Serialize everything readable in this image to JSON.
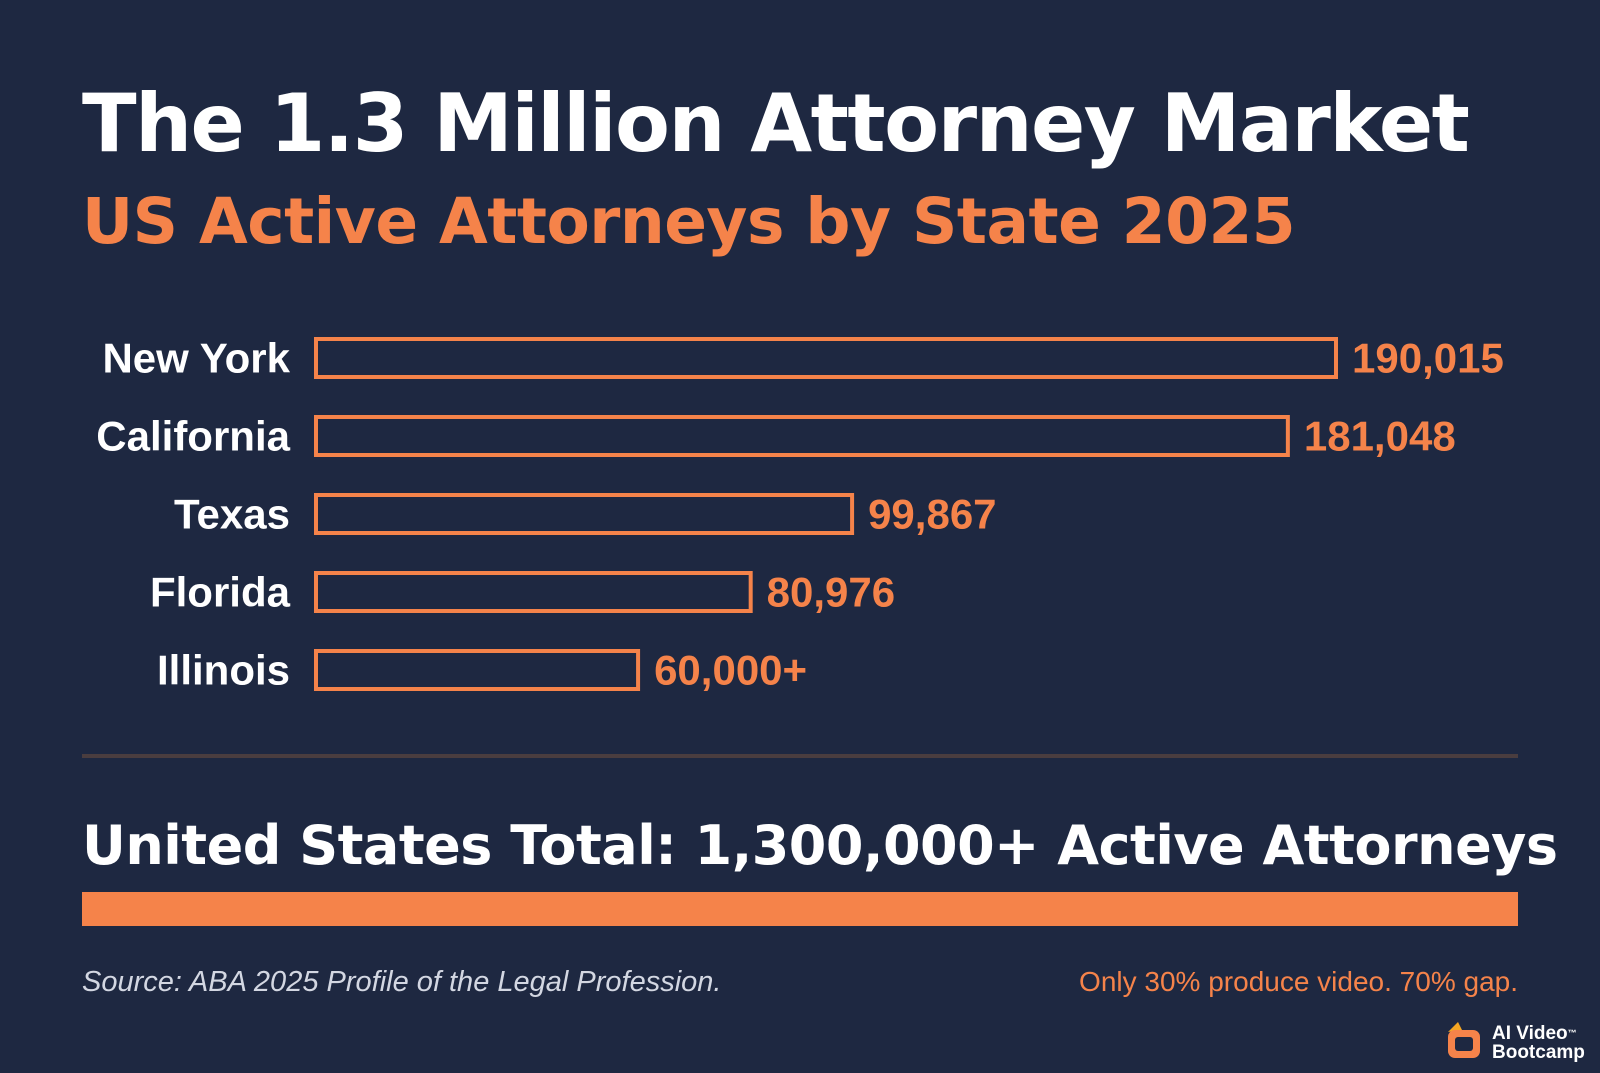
{
  "title": "The 1.3 Million Attorney Market",
  "subtitle": "US Active Attorneys by State 2025",
  "chart_data": {
    "type": "bar",
    "orientation": "horizontal",
    "categories": [
      "New York",
      "California",
      "Texas",
      "Florida",
      "Illinois"
    ],
    "values": [
      190015,
      181048,
      99867,
      80976,
      60000
    ],
    "value_labels": [
      "190,015",
      "181,048",
      "99,867",
      "80,976",
      "60,000+"
    ],
    "bar_style": "outline",
    "bar_color": "#f5834a",
    "label_color": "#ffffff",
    "value_color": "#f5834a",
    "grid": false,
    "xlim": [
      0,
      190015
    ]
  },
  "total": {
    "text": "United States Total: 1,300,000+ Active Attorneys",
    "bar_color": "#f5834a"
  },
  "source": "Source: ABA 2025 Profile of the Legal Profession.",
  "note": "Only 30% produce video. 70% gap.",
  "logo": {
    "line1": "AI Video",
    "trademark": "™",
    "line2": "Bootcamp"
  },
  "colors": {
    "background": "#1e2841",
    "accent": "#f5834a",
    "divider": "#4a3d3f"
  }
}
